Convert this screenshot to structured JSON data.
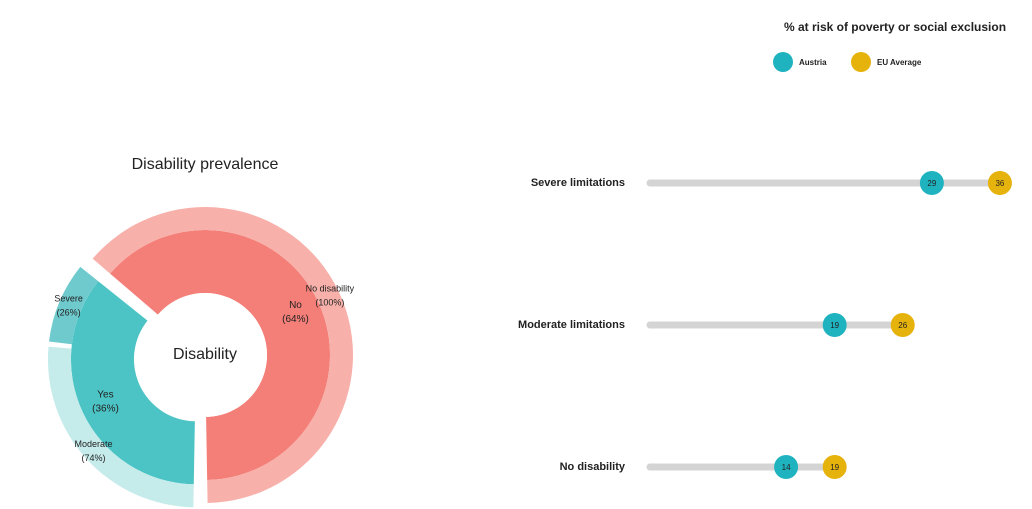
{
  "chart_data": [
    {
      "type": "sunburst",
      "title": "Disability prevalence",
      "center_label": "Disability",
      "categories": [
        "Yes",
        "No"
      ],
      "values": [
        36,
        64
      ],
      "value_labels": [
        "(36%)",
        "(64%)"
      ],
      "colors": [
        "#4cc3c4",
        "#f47f78"
      ],
      "children": [
        {
          "categories": [
            "Severe",
            "Moderate"
          ],
          "values": [
            26,
            74
          ],
          "value_labels": [
            "(26%)",
            "(74%)"
          ],
          "colors": [
            "#6fcacd",
            "#c6ebeb"
          ]
        },
        {
          "categories": [
            "No disability"
          ],
          "values": [
            100
          ],
          "value_labels": [
            "(100%)"
          ],
          "colors": [
            "#f8b1aa"
          ]
        }
      ]
    },
    {
      "type": "dumbbell",
      "title": "% at risk of poverty or social exclusion",
      "categories": [
        "Severe limitations",
        "Moderate limitations",
        "No disability"
      ],
      "series": [
        {
          "name": "Austria",
          "color": "#1fb3c0",
          "values": [
            29,
            19,
            14
          ]
        },
        {
          "name": "EU Average",
          "color": "#e6b20c",
          "values": [
            36,
            26,
            19
          ]
        }
      ]
    }
  ]
}
